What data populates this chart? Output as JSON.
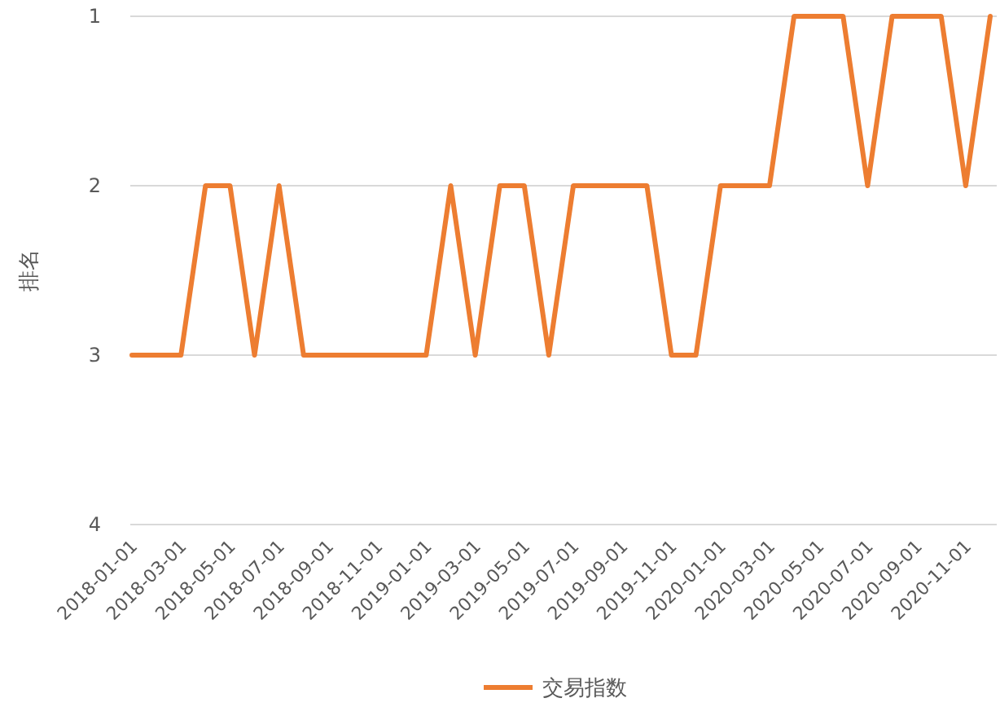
{
  "chart_data": {
    "type": "line",
    "ylabel": "排名",
    "categories": [
      "2018-01-01",
      null,
      "2018-03-01",
      null,
      "2018-05-01",
      null,
      "2018-07-01",
      null,
      "2018-09-01",
      null,
      "2018-11-01",
      null,
      "2019-01-01",
      null,
      "2019-03-01",
      null,
      "2019-05-01",
      null,
      "2019-07-01",
      null,
      "2019-09-01",
      null,
      "2019-11-01",
      null,
      "2020-01-01",
      null,
      "2020-03-01",
      null,
      "2020-05-01",
      null,
      "2020-07-01",
      null,
      "2020-09-01",
      null,
      "2020-11-01",
      null
    ],
    "series": [
      {
        "name": "交易指数",
        "color": "#ed7d31",
        "values": [
          3,
          3,
          3,
          2,
          2,
          3,
          2,
          3,
          3,
          3,
          3,
          3,
          3,
          2,
          3,
          2,
          2,
          3,
          2,
          2,
          2,
          2,
          3,
          3,
          2,
          2,
          2,
          1,
          1,
          1,
          2,
          1,
          1,
          1,
          2,
          1
        ]
      }
    ],
    "ylim": [
      4,
      1
    ],
    "yticks": [
      1,
      2,
      3,
      4
    ],
    "grid": "y",
    "legend": "bottom",
    "marker": "none",
    "line_style": "solid"
  }
}
